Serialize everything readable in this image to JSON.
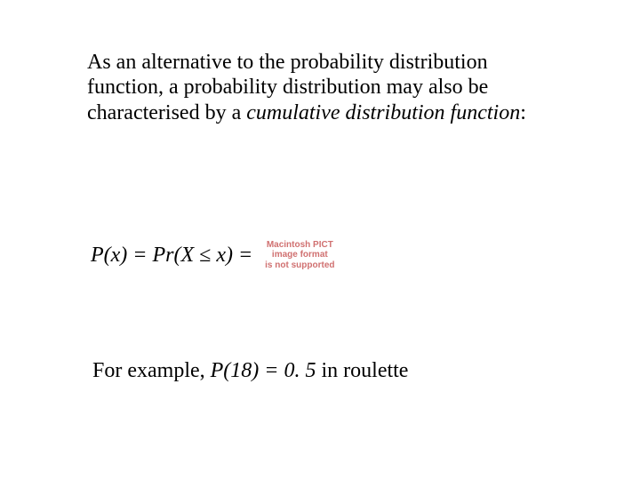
{
  "colors": {
    "background": "#ffffff",
    "text": "#000000",
    "missing_image_text": "#d07070"
  },
  "typography": {
    "body_family": "Times New Roman",
    "body_size_pt": 24,
    "missing_family": "Arial",
    "missing_size_pt": 10,
    "missing_weight": "bold"
  },
  "paragraph1": {
    "run1": "As an alternative to the probability distribution function, a probability distribution may also be characterised by a ",
    "italic1": "cumulative distribution function",
    "run2": ":"
  },
  "equation": {
    "text": "P(x) = Pr(X ≤ x) ="
  },
  "missing_image": {
    "line1": "Macintosh PICT",
    "line2": "image format",
    "line3": "is not supported"
  },
  "paragraph2": {
    "run1": "For example, ",
    "italic1": "P(18) = 0. 5",
    "run2": " in roulette"
  }
}
